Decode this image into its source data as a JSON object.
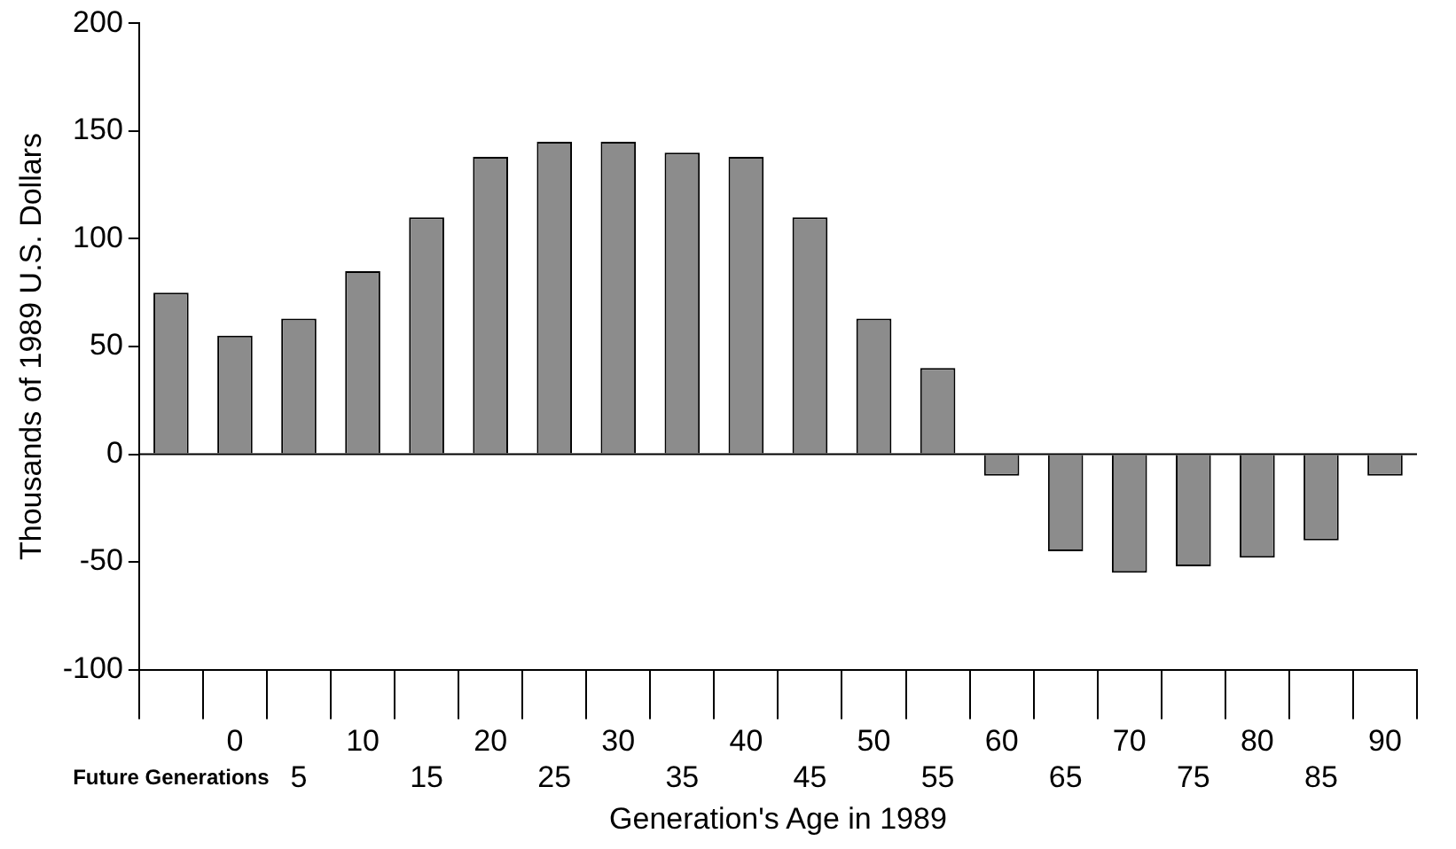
{
  "chart_data": {
    "type": "bar",
    "xlabel": "Generation's Age in 1989",
    "ylabel": "Thousands of 1989 U.S. Dollars",
    "categories": [
      "Future Generations",
      "0",
      "5",
      "10",
      "15",
      "20",
      "25",
      "30",
      "35",
      "40",
      "45",
      "50",
      "55",
      "60",
      "65",
      "70",
      "75",
      "80",
      "85",
      "90"
    ],
    "values": [
      75,
      55,
      63,
      85,
      110,
      138,
      145,
      145,
      140,
      138,
      110,
      63,
      40,
      -10,
      -45,
      -55,
      -52,
      -48,
      -40,
      -10
    ],
    "color": "#8c8c8c",
    "ylim": [
      -100,
      200
    ],
    "yticks": [
      -100,
      -50,
      0,
      50,
      100,
      150,
      200
    ],
    "grid": false,
    "ref_lines": [
      {
        "axis": "y",
        "value": 0,
        "color": "#000000"
      }
    ]
  }
}
